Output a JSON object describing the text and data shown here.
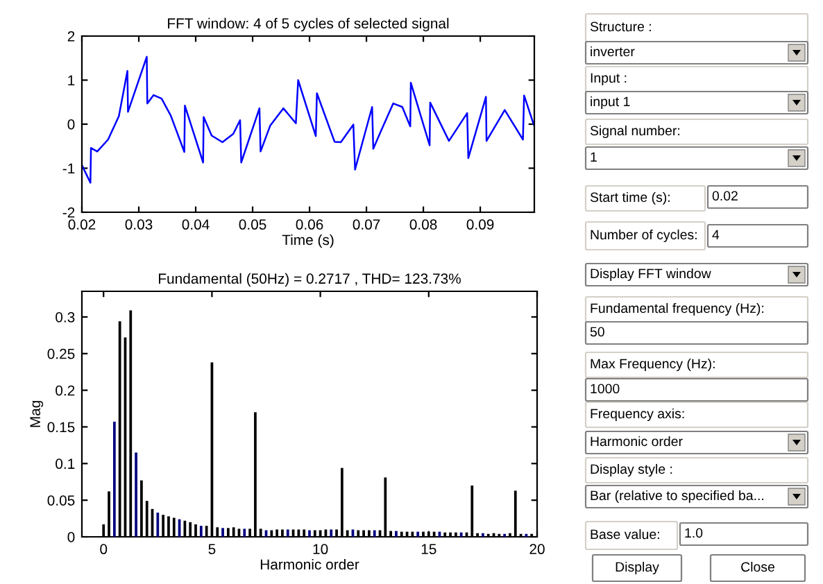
{
  "chart_data": [
    {
      "type": "line",
      "title": "FFT window: 4 of 5 cycles of selected signal",
      "xlabel": "Time (s)",
      "x": [
        0.02,
        0.0215,
        0.0216,
        0.0227,
        0.0246,
        0.0265,
        0.028,
        0.0281,
        0.0314,
        0.0315,
        0.0326,
        0.034,
        0.0356,
        0.038,
        0.0381,
        0.0413,
        0.0414,
        0.0428,
        0.0447,
        0.0466,
        0.0478,
        0.048,
        0.0512,
        0.0514,
        0.0531,
        0.0554,
        0.0576,
        0.058,
        0.0611,
        0.0613,
        0.0644,
        0.0655,
        0.0677,
        0.068,
        0.071,
        0.0712,
        0.0726,
        0.0747,
        0.0763,
        0.0777,
        0.0778,
        0.0811,
        0.0812,
        0.0845,
        0.0877,
        0.0879,
        0.091,
        0.0911,
        0.0943,
        0.0975,
        0.0977,
        0.0994
      ],
      "series": [
        {
          "color": "#0000ff",
          "values": [
            -0.93,
            -1.33,
            -0.54,
            -0.62,
            -0.35,
            0.18,
            1.21,
            0.28,
            1.53,
            0.47,
            0.66,
            0.58,
            0.2,
            -0.63,
            0.42,
            -0.87,
            0.16,
            -0.26,
            -0.41,
            -0.22,
            0.09,
            -0.87,
            0.36,
            -0.62,
            -0.03,
            0.36,
            0.02,
            1.0,
            -0.27,
            0.7,
            -0.4,
            -0.41,
            -0.01,
            -1.03,
            0.39,
            -0.56,
            -0.14,
            0.47,
            0.39,
            -0.05,
            0.94,
            -0.48,
            0.49,
            -0.38,
            0.25,
            -0.77,
            0.62,
            -0.38,
            0.32,
            -0.35,
            0.65,
            -0.01
          ]
        }
      ],
      "xlim": [
        0.02,
        0.0995
      ],
      "xticks": [
        0.02,
        0.03,
        0.04,
        0.05,
        0.06,
        0.07,
        0.08,
        0.09
      ],
      "ylim": [
        -2,
        2
      ],
      "yticks": [
        -2,
        -1,
        0,
        1,
        2
      ],
      "grid": false,
      "legend": false
    },
    {
      "type": "bar",
      "title": "Fundamental (50Hz) = 0.2717 , THD= 123.73%",
      "xlabel": "Harmonic order",
      "ylabel": "Mag",
      "x": [
        0,
        0.25,
        0.5,
        0.75,
        1,
        1.25,
        1.5,
        1.75,
        2,
        2.25,
        2.5,
        2.75,
        3,
        3.25,
        3.5,
        3.75,
        4,
        4.25,
        4.5,
        4.75,
        5,
        5.25,
        5.5,
        5.75,
        6,
        6.25,
        6.5,
        6.75,
        7,
        7.25,
        7.5,
        7.75,
        8,
        8.25,
        8.5,
        8.75,
        9,
        9.25,
        9.5,
        9.75,
        10,
        10.25,
        10.5,
        10.75,
        11,
        11.25,
        11.5,
        11.75,
        12,
        12.25,
        12.5,
        12.75,
        13,
        13.25,
        13.5,
        13.75,
        14,
        14.25,
        14.5,
        14.75,
        15,
        15.25,
        15.5,
        15.75,
        16,
        16.25,
        16.5,
        16.75,
        17,
        17.25,
        17.5,
        17.75,
        18,
        18.25,
        18.5,
        18.75,
        19,
        19.25,
        19.5,
        19.75
      ],
      "values": [
        0.017,
        0.062,
        0.157,
        0.294,
        0.272,
        0.309,
        0.115,
        0.077,
        0.049,
        0.038,
        0.033,
        0.03,
        0.028,
        0.026,
        0.024,
        0.022,
        0.02,
        0.017,
        0.015,
        0.015,
        0.238,
        0.013,
        0.012,
        0.012,
        0.013,
        0.011,
        0.011,
        0.011,
        0.17,
        0.011,
        0.009,
        0.009,
        0.01,
        0.01,
        0.01,
        0.01,
        0.01,
        0.01,
        0.009,
        0.009,
        0.009,
        0.01,
        0.01,
        0.01,
        0.094,
        0.009,
        0.01,
        0.009,
        0.009,
        0.009,
        0.009,
        0.009,
        0.081,
        0.008,
        0.008,
        0.007,
        0.007,
        0.007,
        0.007,
        0.007,
        0.007,
        0.007,
        0.007,
        0.006,
        0.006,
        0.006,
        0.006,
        0.006,
        0.07,
        0.005,
        0.005,
        0.004,
        0.005,
        0.004,
        0.004,
        0.005,
        0.063,
        0.004,
        0.004,
        0.004
      ],
      "colors": [
        "#000000",
        "#000000",
        "#000080",
        "#000000",
        "#000000",
        "#000000",
        "#000080",
        "#000000",
        "#000000",
        "#000000",
        "#000080",
        "#000000",
        "#000000",
        "#000000",
        "#000080",
        "#000000",
        "#000000",
        "#000000",
        "#000080",
        "#000000",
        "#000000",
        "#000000",
        "#000080",
        "#000000",
        "#000000",
        "#000000",
        "#000080",
        "#000000",
        "#000000",
        "#000000",
        "#000080",
        "#000000",
        "#000000",
        "#000000",
        "#000080",
        "#000000",
        "#000000",
        "#000000",
        "#000080",
        "#000000",
        "#000000",
        "#000000",
        "#000080",
        "#000000",
        "#000000",
        "#000000",
        "#000080",
        "#000000",
        "#000000",
        "#000000",
        "#000080",
        "#000000",
        "#000000",
        "#000000",
        "#000080",
        "#000000",
        "#000000",
        "#000000",
        "#000080",
        "#000000",
        "#000000",
        "#000000",
        "#000080",
        "#000000",
        "#000000",
        "#000000",
        "#000080",
        "#000000",
        "#000000",
        "#000000",
        "#000080",
        "#000000",
        "#000000",
        "#000000",
        "#000080",
        "#000000",
        "#000000",
        "#000000",
        "#000080",
        "#000000"
      ],
      "xlim": [
        -1,
        20
      ],
      "xticks": [
        0,
        5,
        10,
        15,
        20
      ],
      "ylim": [
        0,
        0.335
      ],
      "yticks": [
        0,
        0.05,
        0.1,
        0.15,
        0.2,
        0.25,
        0.3
      ],
      "grid": false,
      "legend": false
    },
    {
      "type": "other",
      "annotations": [
        "Structure :",
        "inverter",
        "Input :",
        "input 1",
        "Signal number:",
        "1",
        "Start time (s):",
        "0.02",
        "Number of cycles:",
        "4",
        "Display FFT window",
        "Fundamental frequency (Hz):",
        "50",
        "Max Frequency (Hz):",
        "1000",
        "Frequency axis:",
        "Harmonic order",
        "Display style :",
        "Bar (relative to specified ba...",
        "Base value:",
        "1.0",
        "Display",
        "Close"
      ]
    }
  ]
}
